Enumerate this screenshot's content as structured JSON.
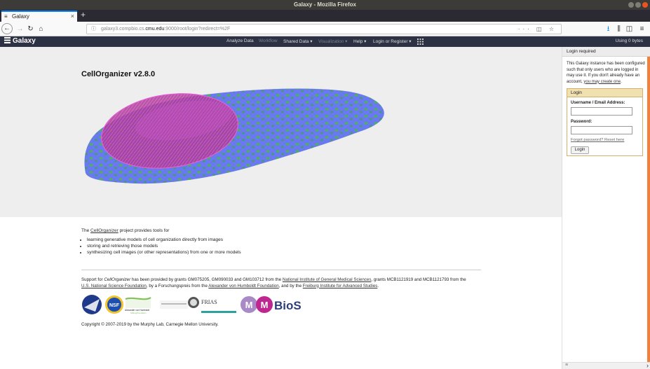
{
  "window": {
    "title": "Galaxy - Mozilla Firefox"
  },
  "tab": {
    "favicon": "galaxy-icon",
    "title": "Galaxy"
  },
  "browser": {
    "url_prefix": "galaxy3.compbio.cs.",
    "url_domain": "cmu.edu",
    "url_suffix": ":9000/root/login?redirect=%2F"
  },
  "masthead": {
    "brand": "Galaxy",
    "items": [
      {
        "label": "Analyze Data"
      },
      {
        "label": "Workflow"
      },
      {
        "label": "Shared Data ▾"
      },
      {
        "label": "Visualization ▾"
      },
      {
        "label": "Help ▾"
      },
      {
        "label": "Login or Register ▾"
      }
    ],
    "usage": "Using 0 bytes"
  },
  "page": {
    "title": "CellOrganizer v2.8.0",
    "intro_pre": "The ",
    "intro_link": "CellOrganizer",
    "intro_post": " project provides tools for",
    "bullets": [
      "learning generative models of cell organization directly from images",
      "storing and retrieving those models",
      "synthesizing cell images (or other representations) from one or more models"
    ],
    "support": {
      "p1": "Support for ",
      "p1_em": "CellOrganizer",
      "p2": " has been provided by grants GM075205, GM090033 and GM103712 from the ",
      "nigms": "National Institute of General Medical Sciences",
      "p3": ", grants MCB1121919 and MCB1121793 from the ",
      "nsf": "U.S. National Science Foundation",
      "p4": ", by a Forschungspreis from the ",
      "humboldt": "Alexander von Humboldt Foundation",
      "p5": ", and by the ",
      "frias": "Freiburg Institute for Advanced Studies",
      "p6": "."
    },
    "logos": {
      "nsf": "NSF",
      "humboldt": "Alexander von Humboldt",
      "humboldt_sub": "Stiftung/Foundation",
      "frias": "FRIAS",
      "mmbios": "BioS"
    },
    "copyright": "Copyright © 2007-2019 by the Murphy Lab, Carnegie Mellon University."
  },
  "right_panel": {
    "header": "Login required",
    "message_pre": "This Galaxy instance has been configured such that only users who are logged in may use it. If you don't already have an account, ",
    "message_link": "you may create one",
    "message_post": ".",
    "login": {
      "title": "Login",
      "username_label": "Username / Email Address:",
      "password_label": "Password:",
      "forgot_link": "Forgot password? Reset here",
      "button": "Login"
    }
  }
}
